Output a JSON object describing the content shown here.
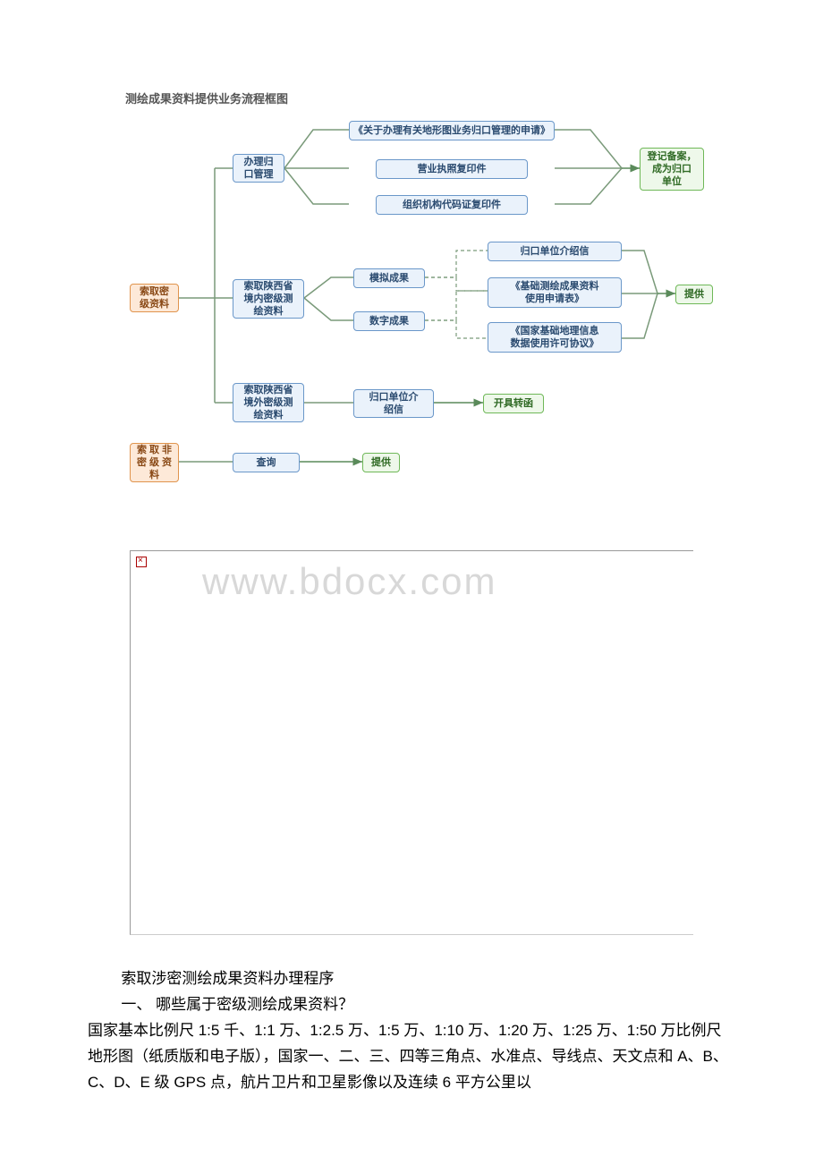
{
  "flowchart": {
    "title": "测绘成果资料提供业务流程框图",
    "colors": {
      "blue_bg": "#eaf2fb",
      "blue_border": "#6a97c9",
      "green_bg": "#eef8ea",
      "green_border": "#6fb858",
      "orange_bg": "#fde9d8",
      "orange_border": "#e0944d",
      "line": "#7a9a7a",
      "dash": "#7a9a7a"
    },
    "nodes": {
      "n_guanli": {
        "label": "办理归\n口管理",
        "type": "blue"
      },
      "n_shenqing": {
        "label": "《关于办理有关地形图业务归口管理的申请》",
        "type": "blue"
      },
      "n_yingye": {
        "label": "营业执照复印件",
        "type": "blue"
      },
      "n_zuzhi": {
        "label": "组织机构代码证复印件",
        "type": "blue"
      },
      "n_dengji": {
        "label": "登记备案，\n成为归口\n单位",
        "type": "green"
      },
      "n_suomi": {
        "label": "索取密\n级资料",
        "type": "orange"
      },
      "n_nei": {
        "label": "索取陕西省\n境内密级测\n绘资料",
        "type": "blue"
      },
      "n_moni": {
        "label": "模拟成果",
        "type": "blue"
      },
      "n_shuzi": {
        "label": "数字成果",
        "type": "blue"
      },
      "n_jieshao": {
        "label": "归口单位介绍信",
        "type": "blue"
      },
      "n_jichu": {
        "label": "《基础测绘成果资料\n使用申请表》",
        "type": "blue"
      },
      "n_guojia": {
        "label": "《国家基础地理信息\n数据使用许可协议》",
        "type": "blue"
      },
      "n_tigong1": {
        "label": "提供",
        "type": "green"
      },
      "n_wai": {
        "label": "索取陕西省\n境外密级测\n绘资料",
        "type": "blue"
      },
      "n_jieshao2": {
        "label": "归口单位介\n绍信",
        "type": "blue"
      },
      "n_zhuanhan": {
        "label": "开具转函",
        "type": "green"
      },
      "n_feimi": {
        "label": "索 取 非\n密 级 资\n料",
        "type": "orange"
      },
      "n_chaxun": {
        "label": "查询",
        "type": "blue"
      },
      "n_tigong2": {
        "label": "提供",
        "type": "green"
      }
    }
  },
  "watermark": "www.bdocx.com",
  "bodytext": {
    "line1": "索取涉密测绘成果资料办理程序",
    "line2": "一、 哪些属于密级测绘成果资料？",
    "para": "国家基本比例尺 1:5 千、1:1 万、1:2.5 万、1:5 万、1:10 万、1:20 万、1:25 万、1:50 万比例尺地形图（纸质版和电子版），国家一、二、三、四等三角点、水准点、导线点、天文点和 A、B、C、D、E 级 GPS 点，航片卫片和卫星影像以及连续 6 平方公里以"
  }
}
